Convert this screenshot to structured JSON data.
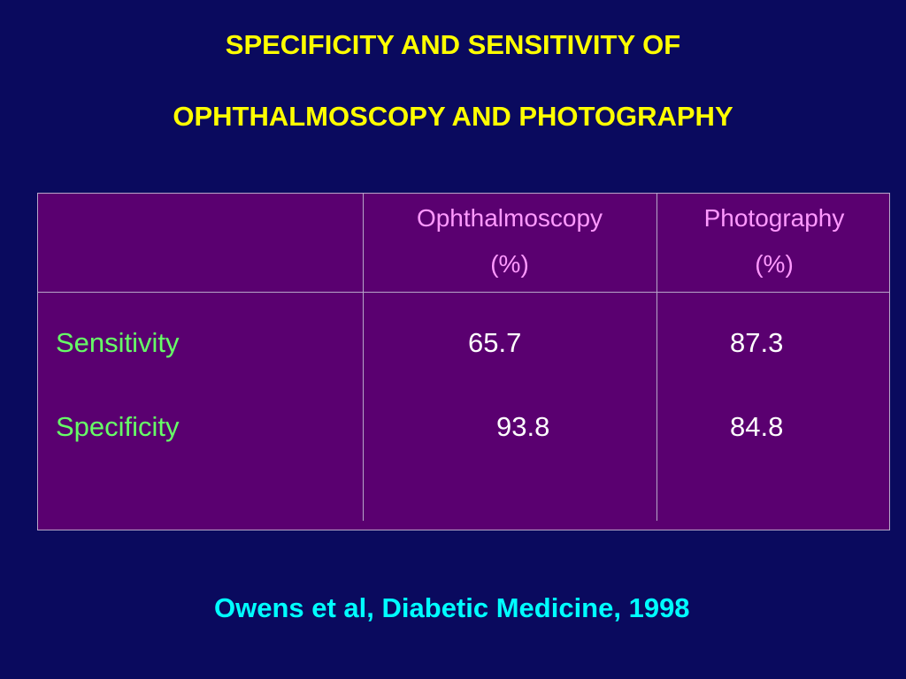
{
  "title": {
    "line1": "SPECIFICITY AND SENSITIVITY OF",
    "line2": "OPHTHALMOSCOPY AND PHOTOGRAPHY"
  },
  "table": {
    "columns": [
      {
        "name": "Ophthalmoscopy",
        "unit": "(%)"
      },
      {
        "name": "Photography",
        "unit": "(%)"
      }
    ],
    "rows": [
      {
        "label": "Sensitivity",
        "values": [
          "65.7",
          "87.3"
        ]
      },
      {
        "label": "Specificity",
        "values": [
          "93.8",
          "84.8"
        ]
      }
    ]
  },
  "citation": "Owens et al, Diabetic Medicine, 1998",
  "colors": {
    "background": "#0a0a5e",
    "table_fill": "#5a0070",
    "title": "#ffff00",
    "header_text": "#ff99ff",
    "row_label": "#66ff66",
    "value_text": "#ffffff",
    "citation": "#00ffff"
  }
}
